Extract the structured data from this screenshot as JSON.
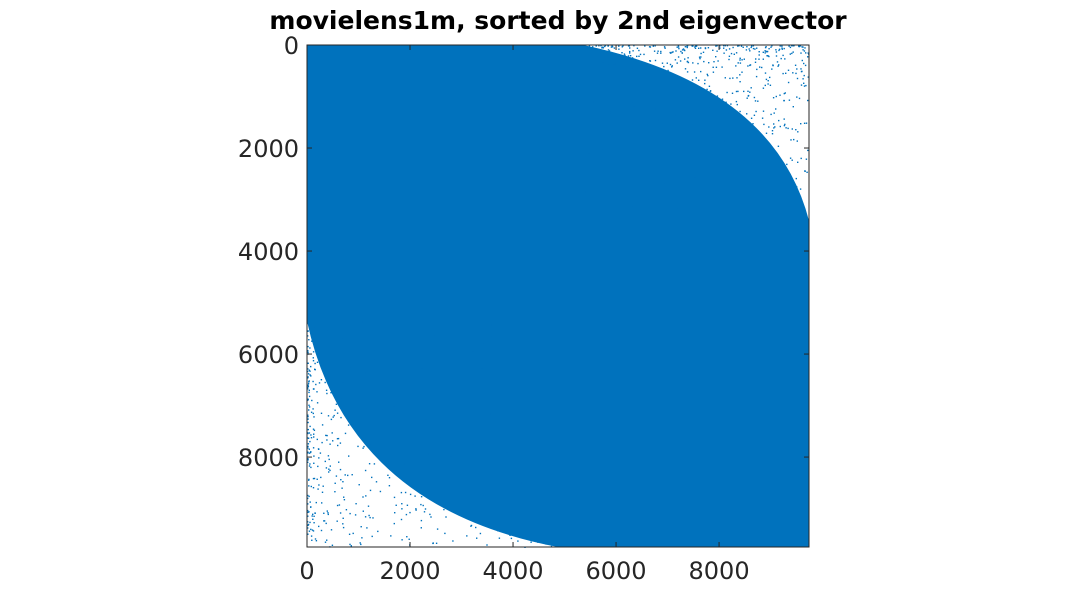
{
  "chart_data": {
    "type": "scatter",
    "title": "movielens1m, sorted by 2nd eigenvector",
    "xlabel": "",
    "ylabel": "",
    "xlim": [
      0,
      9746
    ],
    "ylim": [
      0,
      9746
    ],
    "y_reversed": true,
    "x_ticks": [
      0,
      2000,
      4000,
      6000,
      8000
    ],
    "y_ticks": [
      0,
      2000,
      4000,
      6000,
      8000
    ],
    "x_tick_labels": [
      "0",
      "2000",
      "4000",
      "6000",
      "8000"
    ],
    "y_tick_labels": [
      "0",
      "2000",
      "4000",
      "6000",
      "8000"
    ],
    "grid": false,
    "legend": "none",
    "marker_color": "#0072BD",
    "density_description": "dense sparsity pattern; sparse in top-right corner and bottom-left corner"
  }
}
